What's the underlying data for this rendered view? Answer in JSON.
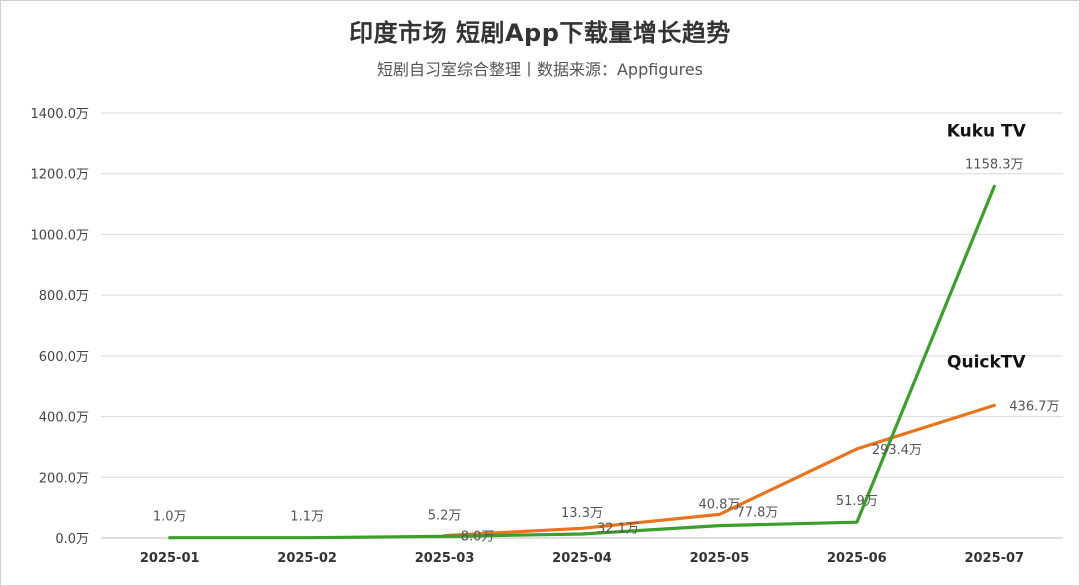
{
  "chart_data": {
    "type": "line",
    "title": "印度市场 短剧App下载量增长趋势",
    "subtitle": "短剧自习室综合整理丨数据来源：Appfigures",
    "categories": [
      "2025-01",
      "2025-02",
      "2025-03",
      "2025-04",
      "2025-05",
      "2025-06",
      "2025-07"
    ],
    "ylim": [
      0,
      1400
    ],
    "yticks": [
      0,
      200,
      400,
      600,
      800,
      1000,
      1200,
      1400
    ],
    "ytick_labels": [
      "0.0万",
      "200.0万",
      "400.0万",
      "600.0万",
      "800.0万",
      "1000.0万",
      "1200.0万",
      "1400.0万"
    ],
    "grid": true,
    "legend": "none",
    "series": [
      {
        "name": "Kuku TV",
        "color": "#3aa02a",
        "values": [
          1.0,
          1.1,
          5.2,
          13.3,
          40.8,
          51.9,
          1158.3
        ],
        "labels": [
          "1.0万",
          "1.1万",
          "5.2万",
          "13.3万",
          "40.8万",
          "51.9万",
          "1158.3万"
        ]
      },
      {
        "name": "QuickTV",
        "color": "#e8741c",
        "values": [
          null,
          null,
          8.0,
          32.1,
          77.8,
          293.4,
          436.7
        ],
        "labels": [
          null,
          null,
          "8.0万",
          "32.1万",
          "77.8万",
          "293.4万",
          "436.7万"
        ]
      }
    ]
  }
}
